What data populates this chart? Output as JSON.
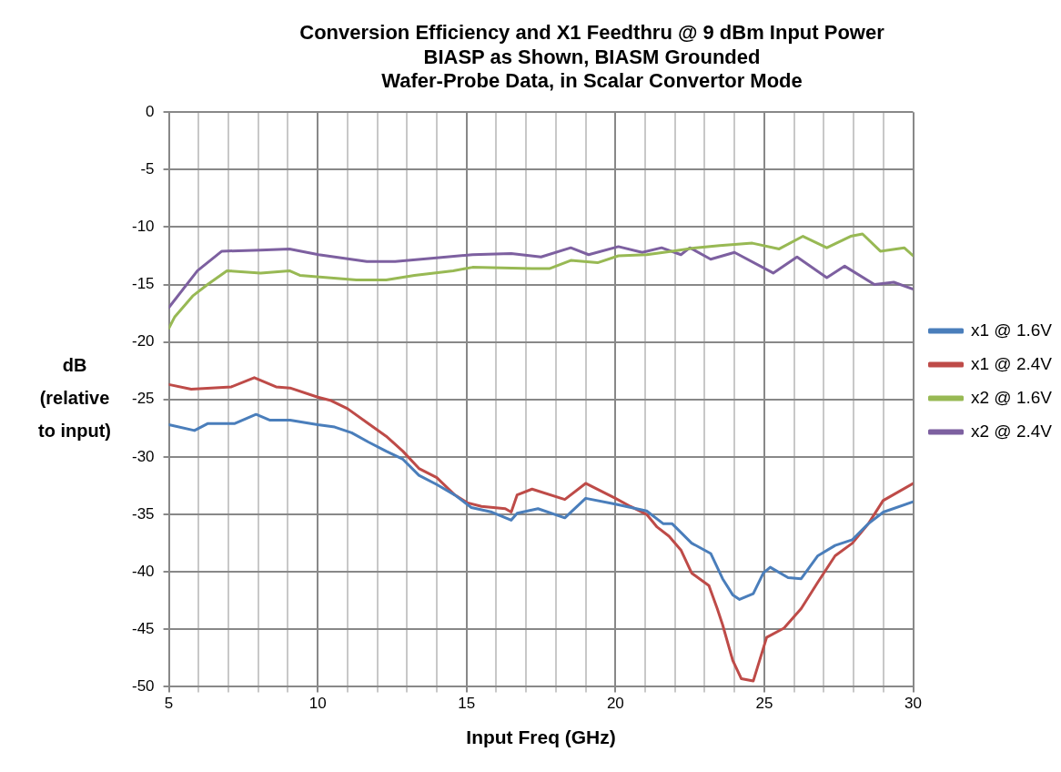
{
  "chart_data": {
    "type": "line",
    "title": "Conversion Efficiency and X1 Feedthru @ 9 dBm Input Power\nBIASP as Shown, BIASM Grounded\nWafer-Probe Data, in Scalar Convertor Mode",
    "xlabel": "Input Freq (GHz)",
    "ylabel": "dB (relative to input)",
    "xlim": [
      5,
      30
    ],
    "ylim": [
      -50,
      0
    ],
    "xticks": [
      5,
      {
        "value": 6,
        "label": null
      },
      {
        "value": 7,
        "label": null
      },
      {
        "value": 8,
        "label": null
      },
      {
        "value": 9,
        "label": null
      },
      10,
      {
        "value": 11,
        "label": null
      },
      {
        "value": 12,
        "label": null
      },
      {
        "value": 13,
        "label": null
      },
      {
        "value": 14,
        "label": null
      },
      15,
      {
        "value": 16,
        "label": null
      },
      {
        "value": 17,
        "label": null
      },
      {
        "value": 18,
        "label": null
      },
      {
        "value": 19,
        "label": null
      },
      20,
      {
        "value": 21,
        "label": null
      },
      {
        "value": 22,
        "label": null
      },
      {
        "value": 23,
        "label": null
      },
      {
        "value": 24,
        "label": null
      },
      25,
      {
        "value": 26,
        "label": null
      },
      {
        "value": 27,
        "label": null
      },
      {
        "value": 28,
        "label": null
      },
      {
        "value": 29,
        "label": null
      },
      30
    ],
    "yticks": [
      0,
      -5,
      -10,
      -15,
      -20,
      -25,
      -30,
      -35,
      -40,
      -45,
      -50
    ],
    "grid": true,
    "legend": "right",
    "marker": "none",
    "line_style": "solid",
    "series": [
      {
        "name": "x1 @ 1.6V",
        "color": "#4a7ebb",
        "x": [
          5.0,
          5.86,
          6.3,
          7.2,
          7.93,
          8.4,
          9.07,
          10.0,
          10.57,
          11.14,
          11.7,
          12.3,
          12.86,
          13.4,
          14.0,
          14.6,
          15.16,
          15.85,
          16.5,
          16.7,
          17.4,
          18.3,
          19.0,
          20.0,
          21.05,
          21.6,
          21.9,
          22.56,
          23.2,
          23.6,
          23.94,
          24.17,
          24.63,
          24.97,
          25.2,
          25.8,
          26.24,
          26.8,
          27.38,
          27.96,
          28.5,
          29.0,
          30.0
        ],
        "values": [
          -27.2,
          -27.7,
          -27.1,
          -27.1,
          -26.3,
          -26.8,
          -26.8,
          -27.2,
          -27.4,
          -27.9,
          -28.7,
          -29.5,
          -30.2,
          -31.6,
          -32.4,
          -33.3,
          -34.4,
          -34.8,
          -35.5,
          -34.9,
          -34.5,
          -35.3,
          -33.6,
          -34.1,
          -34.7,
          -35.8,
          -35.8,
          -37.5,
          -38.4,
          -40.6,
          -42.0,
          -42.4,
          -41.9,
          -40.1,
          -39.6,
          -40.5,
          -40.6,
          -38.6,
          -37.7,
          -37.2,
          -35.8,
          -34.8,
          -33.9
        ]
      },
      {
        "name": "x1 @ 2.4V",
        "color": "#be4b48",
        "x": [
          5.0,
          5.75,
          7.1,
          7.87,
          8.6,
          9.07,
          10.0,
          10.45,
          11.0,
          11.7,
          12.3,
          12.86,
          13.4,
          14.0,
          14.6,
          15.04,
          15.5,
          16.3,
          16.5,
          16.7,
          17.2,
          18.3,
          19.0,
          20.0,
          20.5,
          21.05,
          21.4,
          21.8,
          22.2,
          22.56,
          23.14,
          23.42,
          23.6,
          23.94,
          24.23,
          24.63,
          25.08,
          25.66,
          26.24,
          26.8,
          27.38,
          27.96,
          28.5,
          28.99,
          30.0
        ],
        "values": [
          -23.7,
          -24.1,
          -23.9,
          -23.1,
          -23.9,
          -24.0,
          -24.8,
          -25.1,
          -25.8,
          -27.1,
          -28.2,
          -29.5,
          -31.0,
          -31.8,
          -33.3,
          -34.0,
          -34.3,
          -34.5,
          -34.8,
          -33.3,
          -32.8,
          -33.7,
          -32.3,
          -33.6,
          -34.3,
          -35.0,
          -36.1,
          -36.9,
          -38.1,
          -40.1,
          -41.2,
          -43.2,
          -44.6,
          -47.7,
          -49.3,
          -49.5,
          -45.7,
          -44.9,
          -43.2,
          -40.9,
          -38.6,
          -37.5,
          -35.8,
          -33.8,
          -32.3
        ]
      },
      {
        "name": "x2 @ 1.6V",
        "color": "#98b954",
        "x": [
          5.0,
          5.2,
          5.8,
          6.3,
          6.95,
          8.08,
          9.05,
          9.4,
          11.3,
          12.3,
          13.25,
          14.55,
          15.2,
          17.2,
          17.8,
          18.5,
          19.4,
          20.1,
          21.05,
          21.9,
          22.7,
          23.5,
          24.6,
          25.5,
          26.3,
          27.1,
          27.9,
          28.3,
          28.9,
          29.7,
          30.0
        ],
        "values": [
          -18.8,
          -17.8,
          -16.0,
          -15.0,
          -13.8,
          -14.0,
          -13.8,
          -14.2,
          -14.6,
          -14.6,
          -14.2,
          -13.8,
          -13.5,
          -13.6,
          -13.6,
          -12.9,
          -13.1,
          -12.5,
          -12.4,
          -12.1,
          -11.8,
          -11.6,
          -11.4,
          -11.9,
          -10.8,
          -11.8,
          -10.8,
          -10.6,
          -12.1,
          -11.8,
          -12.5
        ]
      },
      {
        "name": "x2 @ 2.4V",
        "color": "#7d60a0",
        "x": [
          5.0,
          5.96,
          6.78,
          8.08,
          9.05,
          10.03,
          11.65,
          12.6,
          13.9,
          15.2,
          16.5,
          17.5,
          18.5,
          19.1,
          20.1,
          20.9,
          21.55,
          22.2,
          22.5,
          23.2,
          24.0,
          25.3,
          26.1,
          27.1,
          27.7,
          28.7,
          29.35,
          30.0
        ],
        "values": [
          -17.0,
          -13.8,
          -12.1,
          -12.0,
          -11.9,
          -12.4,
          -13.0,
          -13.0,
          -12.7,
          -12.4,
          -12.3,
          -12.6,
          -11.8,
          -12.4,
          -11.7,
          -12.2,
          -11.8,
          -12.4,
          -11.8,
          -12.8,
          -12.2,
          -14.0,
          -12.6,
          -14.4,
          -13.4,
          -15.0,
          -14.8,
          -15.4
        ]
      }
    ]
  }
}
